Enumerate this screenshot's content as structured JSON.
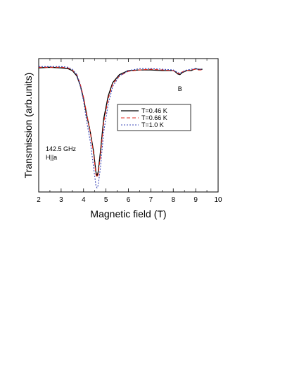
{
  "chart_data": {
    "type": "line",
    "xlabel": "Magnetic field (T)",
    "ylabel": "Transmission (arb.units)",
    "xlim": [
      2,
      10
    ],
    "xticks": [
      2,
      3,
      4,
      5,
      6,
      7,
      8,
      9,
      10
    ],
    "ylim": [
      0,
      1
    ],
    "yticks_labeled": false,
    "grid": false,
    "legend_position": "center-right",
    "annotations": {
      "frequency": "142.5 GHz",
      "orientation": "H||a",
      "peak_label": "B"
    },
    "series": [
      {
        "name": "T=0.46 K",
        "color": "#000000",
        "dash": "solid",
        "x": [
          2.0,
          2.5,
          3.0,
          3.3,
          3.5,
          3.7,
          3.85,
          4.0,
          4.15,
          4.3,
          4.45,
          4.55,
          4.6,
          4.65,
          4.75,
          4.9,
          5.1,
          5.3,
          5.6,
          6.0,
          6.5,
          7.0,
          7.5,
          8.0,
          8.1,
          8.2,
          8.3,
          8.4,
          8.6,
          8.8,
          9.0,
          9.1,
          9.3
        ],
        "y": [
          0.93,
          0.935,
          0.93,
          0.925,
          0.91,
          0.87,
          0.8,
          0.7,
          0.57,
          0.45,
          0.3,
          0.15,
          0.12,
          0.15,
          0.3,
          0.55,
          0.72,
          0.82,
          0.88,
          0.91,
          0.915,
          0.915,
          0.91,
          0.91,
          0.9,
          0.885,
          0.88,
          0.895,
          0.91,
          0.91,
          0.925,
          0.92,
          0.92
        ]
      },
      {
        "name": "T=0.66 K",
        "color": "#e0281f",
        "dash": "dashed",
        "x": [
          2.0,
          2.5,
          3.0,
          3.3,
          3.5,
          3.7,
          3.85,
          4.0,
          4.15,
          4.3,
          4.45,
          4.55,
          4.6,
          4.65,
          4.75,
          4.9,
          5.1,
          5.3,
          5.6,
          6.0,
          6.5,
          7.0,
          7.5,
          8.0,
          8.1,
          8.2,
          8.3,
          8.4,
          8.6,
          8.8,
          9.0,
          9.1,
          9.3
        ],
        "y": [
          0.935,
          0.935,
          0.935,
          0.93,
          0.915,
          0.88,
          0.81,
          0.71,
          0.58,
          0.45,
          0.28,
          0.13,
          0.11,
          0.13,
          0.27,
          0.52,
          0.7,
          0.81,
          0.87,
          0.905,
          0.915,
          0.92,
          0.915,
          0.91,
          0.9,
          0.89,
          0.885,
          0.9,
          0.91,
          0.915,
          0.92,
          0.915,
          0.915
        ]
      },
      {
        "name": "T=1.0 K",
        "color": "#3a47b8",
        "dash": "dotted",
        "x": [
          2.0,
          2.5,
          3.0,
          3.3,
          3.5,
          3.7,
          3.85,
          4.0,
          4.15,
          4.3,
          4.45,
          4.55,
          4.6,
          4.65,
          4.75,
          4.9,
          5.1,
          5.3,
          5.6,
          6.0,
          6.5,
          7.0,
          7.5,
          8.0,
          8.1,
          8.2,
          8.3,
          8.4,
          8.6,
          8.8,
          9.0,
          9.1,
          9.3
        ],
        "y": [
          0.94,
          0.94,
          0.94,
          0.935,
          0.92,
          0.88,
          0.8,
          0.68,
          0.52,
          0.38,
          0.18,
          0.05,
          0.03,
          0.05,
          0.18,
          0.45,
          0.66,
          0.79,
          0.87,
          0.91,
          0.925,
          0.925,
          0.92,
          0.915,
          0.905,
          0.895,
          0.89,
          0.9,
          0.915,
          0.92,
          0.925,
          0.92,
          0.92
        ]
      }
    ]
  }
}
